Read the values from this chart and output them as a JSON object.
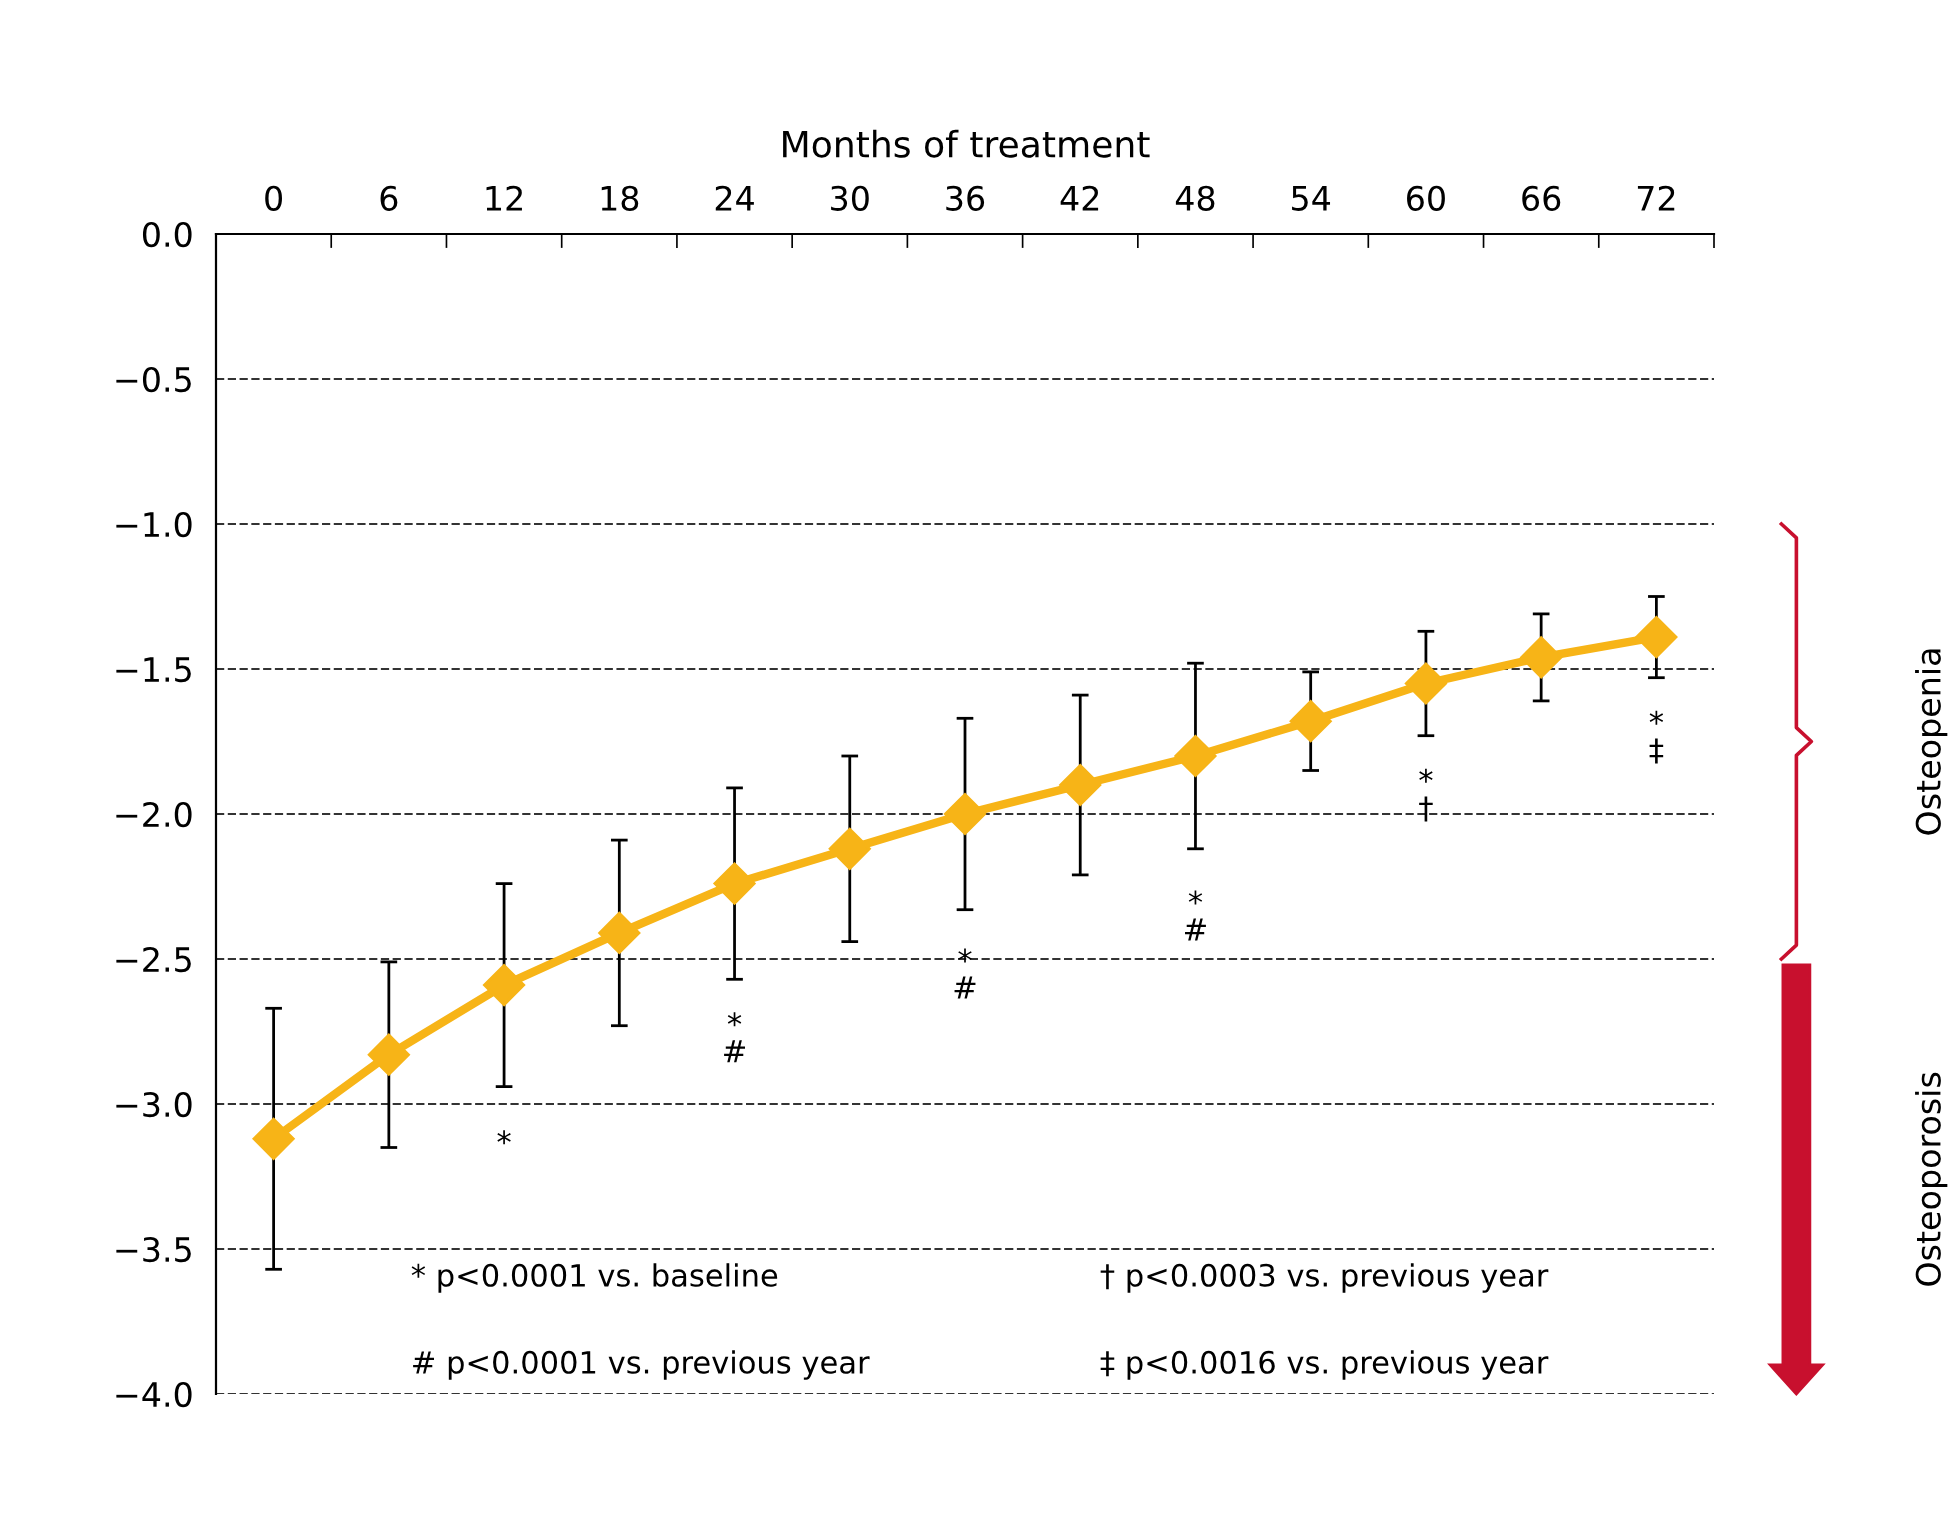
{
  "chart_data": {
    "type": "line",
    "xlabel": "Months of treatment",
    "categories": [
      "0",
      "6",
      "12",
      "18",
      "24",
      "30",
      "36",
      "42",
      "48",
      "54",
      "60",
      "66",
      "72"
    ],
    "series": [
      {
        "color": "#f7b417",
        "values": [
          -3.12,
          -2.83,
          -2.59,
          -2.41,
          -2.24,
          -2.12,
          -2.0,
          -1.9,
          -1.8,
          -1.68,
          -1.55,
          -1.46,
          -1.39
        ],
        "errors": [
          0.45,
          0.32,
          0.35,
          0.32,
          0.33,
          0.32,
          0.33,
          0.31,
          0.32,
          0.17,
          0.18,
          0.15,
          0.14
        ]
      }
    ],
    "marker": "diamond",
    "line_style": "solid",
    "ylim": [
      -4.0,
      0.0
    ],
    "yticks": [
      {
        "value": 0.0,
        "label": "0.0"
      },
      {
        "value": -0.5,
        "label": "−0.5"
      },
      {
        "value": -1.0,
        "label": "−1.0"
      },
      {
        "value": -1.5,
        "label": "−1.5"
      },
      {
        "value": -2.0,
        "label": "−2.0"
      },
      {
        "value": -2.5,
        "label": "−2.5"
      },
      {
        "value": -3.0,
        "label": "−3.0"
      },
      {
        "value": -3.5,
        "label": "−3.5"
      },
      {
        "value": -4.0,
        "label": "−4.0"
      }
    ],
    "grid": "y",
    "annotations": [
      "*",
      "*\n#",
      "*\n#",
      "*\n#",
      "*\n†",
      "*\n‡",
      "* p<0.0001 vs. baseline",
      "# p<0.0001 vs. previous year",
      "† p<0.0003 vs. previous year",
      "‡ p<0.0016 vs. previous year",
      "Osteopenia",
      "Osteoporosis"
    ]
  }
}
